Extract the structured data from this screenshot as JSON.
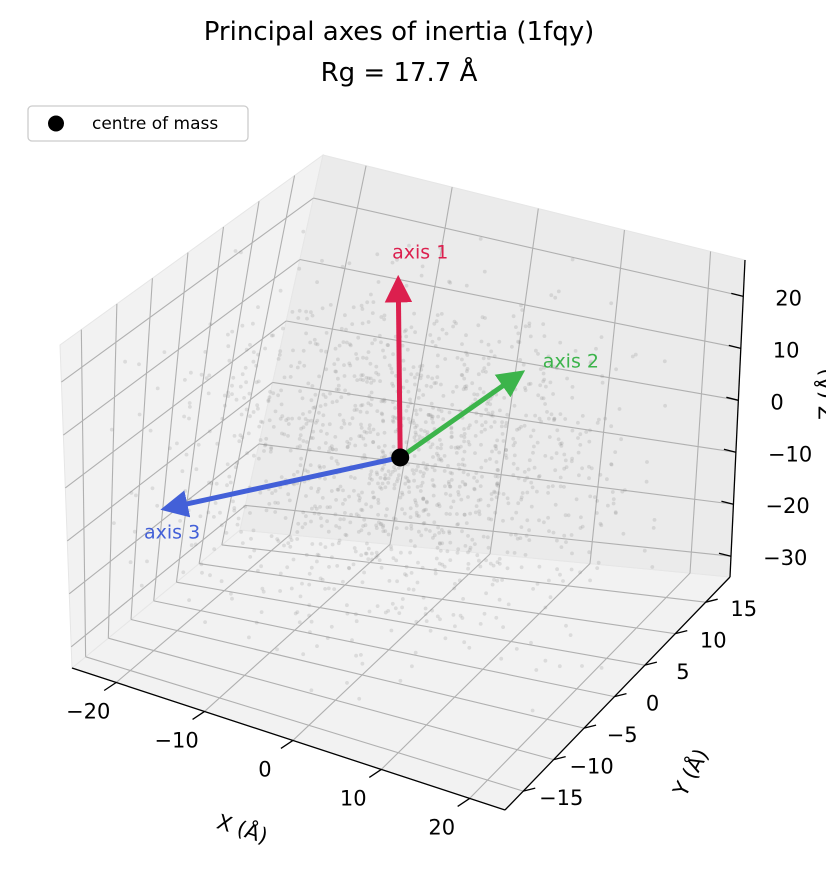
{
  "chart_data": {
    "type": "scatter",
    "projection": "3d",
    "title": "Principal axes of inertia (1fqy)",
    "subtitle": "Rg = 17.7 Å",
    "xlabel": "X (Å)",
    "ylabel": "Y (Å)",
    "zlabel": "Z (Å)",
    "xlim": [
      -25,
      24
    ],
    "ylim": [
      -18,
      19
    ],
    "zlim": [
      -34,
      27
    ],
    "xticks": [
      -20,
      -10,
      0,
      10,
      20
    ],
    "xtick_labels": [
      "−20",
      "−10",
      "0",
      "10",
      "20"
    ],
    "yticks": [
      -15,
      -10,
      -5,
      0,
      5,
      10,
      15
    ],
    "ytick_labels": [
      "−15",
      "−10",
      "−5",
      "0",
      "5",
      "10",
      "15"
    ],
    "zticks": [
      -30,
      -20,
      -10,
      0,
      10,
      20
    ],
    "ztick_labels": [
      "−30",
      "−20",
      "−10",
      "0",
      "10",
      "20"
    ],
    "grid": true,
    "legend": {
      "position": "top-left",
      "entries": [
        {
          "label": "centre of mass",
          "marker": "circle",
          "color": "#000000"
        }
      ]
    },
    "centre_of_mass": [
      0,
      0,
      0
    ],
    "series": [
      {
        "name": "centre of mass",
        "type": "scatter",
        "points": [
          [
            0,
            0,
            0
          ]
        ],
        "color": "#000000"
      }
    ],
    "atoms": {
      "count": 1400,
      "color": "#888888",
      "distribution": "ellipsoid",
      "sigma": [
        11,
        7.5,
        13
      ]
    },
    "principal_axes": [
      {
        "label": "axis 1",
        "color": "#dc1f4e",
        "from": [
          0,
          0,
          0
        ],
        "to": [
          -5,
          5,
          25
        ]
      },
      {
        "label": "axis 2",
        "color": "#3cb44b",
        "from": [
          0,
          0,
          0
        ],
        "to": [
          0,
          20,
          -3
        ]
      },
      {
        "label": "axis 3",
        "color": "#4360d8",
        "from": [
          0,
          0,
          0
        ],
        "to": [
          -22,
          -5,
          -13
        ]
      }
    ]
  }
}
